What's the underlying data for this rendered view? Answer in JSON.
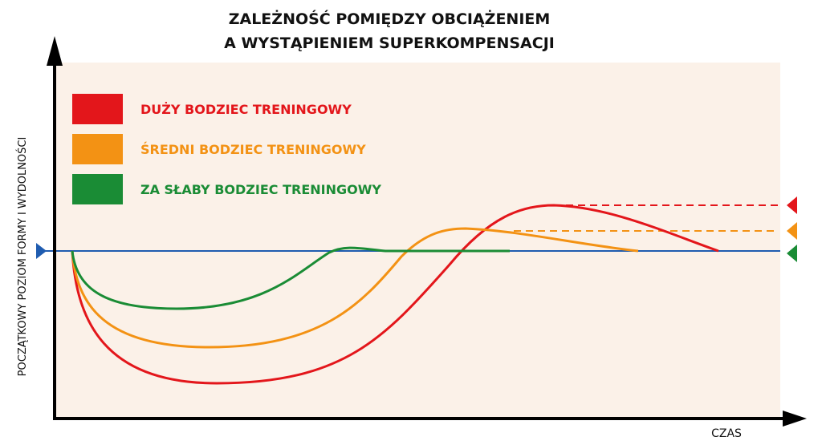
{
  "title": {
    "line1": "ZALEŻNOŚĆ POMIĘDZY OBCIĄŻENIEM",
    "line2": "A WYSTĄPIENIEM SUPERKOMPENSACJI"
  },
  "legend": [
    {
      "label": "DUŻY BODZIEC TRENINGOWY"
    },
    {
      "label": "ŚREDNI BODZIEC TRENINGOWY"
    },
    {
      "label": "ZA SŁABY BODZIEC TRENINGOWY"
    }
  ],
  "y_axis_label": "POCZĄTKOWY POZIOM FORMY I WYDOLNOŚCI",
  "x_axis_label": "CZAS"
}
